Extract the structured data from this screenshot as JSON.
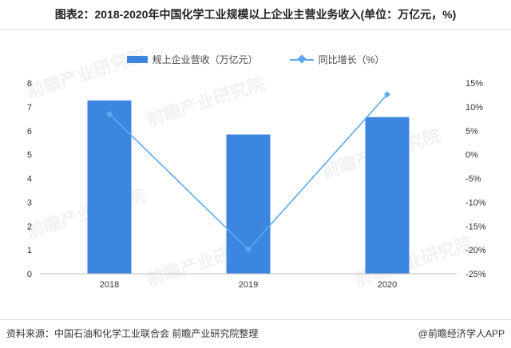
{
  "chart_data": {
    "type": "bar+line",
    "title": "图表2：2018-2020年中国化学工业规模以上企业主营业务收入(单位：万亿元，%)",
    "categories": [
      "2018",
      "2019",
      "2020"
    ],
    "series": [
      {
        "name": "规上企业营收（万亿元）",
        "type": "bar",
        "axis": "left",
        "color": "#3d86e0",
        "values": [
          7.27,
          5.84,
          6.57
        ]
      },
      {
        "name": "同比增长（%）",
        "type": "line",
        "axis": "right",
        "color": "#5aaaf0",
        "values": [
          8.5,
          -19.9,
          12.6
        ]
      }
    ],
    "y_left": {
      "min": 0,
      "max": 8,
      "ticks": [
        "0",
        "1",
        "2",
        "3",
        "4",
        "5",
        "6",
        "7",
        "8"
      ]
    },
    "y_right": {
      "min": -25,
      "max": 15,
      "ticks": [
        "-25%",
        "-20%",
        "-15%",
        "-10%",
        "-5%",
        "0%",
        "5%",
        "10%",
        "15%"
      ]
    },
    "legend_position": "top-center",
    "grid": false
  },
  "footer": {
    "source": "资料来源：中国石油和化学工业联合会 前瞻产业研究院整理",
    "brand": "@前瞻经济学人APP"
  },
  "watermark": "前瞻产业研究院"
}
